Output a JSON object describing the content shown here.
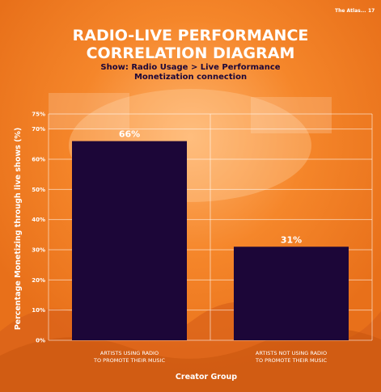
{
  "header": {
    "brand": "The Atlas...",
    "page_number": "17"
  },
  "title_lines": [
    "RADIO-LIVE PERFORMANCE",
    "CORRELATION DIAGRAM"
  ],
  "subtitle": "Show: Radio Usage  > Live Performance Monetization connection",
  "colors": {
    "background": "#f07a1c",
    "bar": "#1c0638",
    "text_light": "#ffffff",
    "text_dark": "#1c0638"
  },
  "chart_data": {
    "type": "bar",
    "categories": [
      [
        "ARTISTS USING RADIO",
        "TO PROMOTE THEIR MUSIC"
      ],
      [
        "ARTISTS NOT USING RADIO",
        "TO PROMOTE THEIR MUSIC"
      ]
    ],
    "values": [
      66,
      31
    ],
    "data_labels": [
      "66%",
      "31%"
    ],
    "yticks": [
      "0%",
      "10%",
      "20%",
      "30%",
      "40%",
      "50%",
      "60%",
      "70%",
      "75%"
    ],
    "ytick_values": [
      0,
      10,
      20,
      30,
      40,
      50,
      60,
      70,
      75
    ],
    "ylim": [
      0,
      75
    ],
    "xlabel": "Creator Group",
    "ylabel": "Percentage Monetizing through live shows (%)",
    "grid": true
  }
}
